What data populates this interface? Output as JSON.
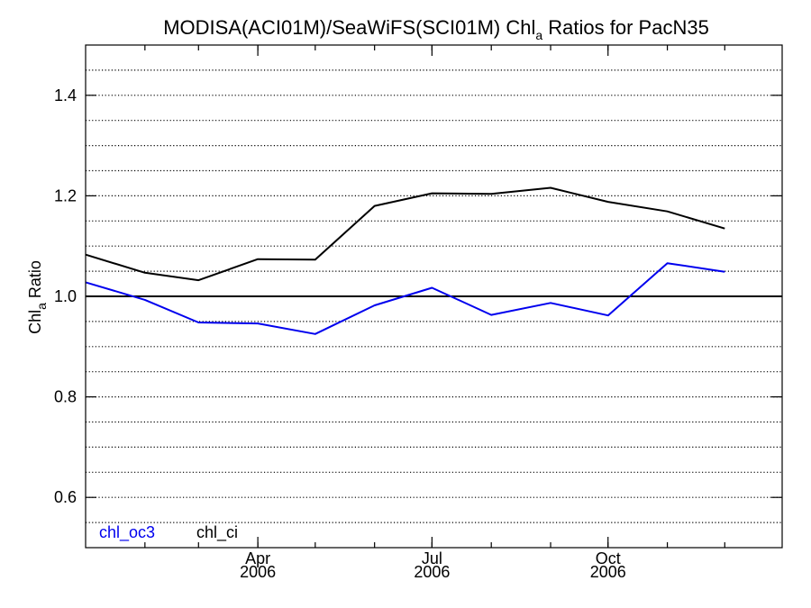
{
  "chart_data": {
    "type": "line",
    "title": {
      "main": "MODISA(ACI01M)/SeaWiFS(SCI01M)  Chl",
      "subscript": "a",
      "rest": " Ratios for PacN35"
    },
    "ylabel": {
      "main": "Chl",
      "subscript": "a",
      "rest": " Ratio"
    },
    "xlabel": "",
    "ylim": [
      0.5,
      1.5
    ],
    "xlim": [
      "2006-01-01",
      "2006-12-31"
    ],
    "yticks": [
      {
        "value": 0.6,
        "label": "0.6"
      },
      {
        "value": 0.8,
        "label": "0.8"
      },
      {
        "value": 1.0,
        "label": "1.0"
      },
      {
        "value": 1.2,
        "label": "1.2"
      },
      {
        "value": 1.4,
        "label": "1.4"
      }
    ],
    "xticks": [
      {
        "date": "2006-04-01",
        "label": "Apr",
        "year": "2006"
      },
      {
        "date": "2006-07-01",
        "label": "Jul",
        "year": "2006"
      },
      {
        "date": "2006-10-01",
        "label": "Oct",
        "year": "2006"
      }
    ],
    "reference_line": 1.0,
    "grid": true,
    "legend_position": "bottom-left",
    "series": [
      {
        "name": "chl_oc3",
        "color": "#0000ee",
        "points": [
          {
            "x": "2006-01-01",
            "y": 1.028
          },
          {
            "x": "2006-02-01",
            "y": 0.993
          },
          {
            "x": "2006-03-01",
            "y": 0.948
          },
          {
            "x": "2006-04-01",
            "y": 0.946
          },
          {
            "x": "2006-05-01",
            "y": 0.925
          },
          {
            "x": "2006-06-01",
            "y": 0.982
          },
          {
            "x": "2006-07-01",
            "y": 1.017
          },
          {
            "x": "2006-08-01",
            "y": 0.963
          },
          {
            "x": "2006-09-01",
            "y": 0.987
          },
          {
            "x": "2006-10-01",
            "y": 0.962
          },
          {
            "x": "2006-11-01",
            "y": 1.066
          },
          {
            "x": "2006-12-01",
            "y": 1.049
          }
        ]
      },
      {
        "name": "chl_ci",
        "color": "#000000",
        "points": [
          {
            "x": "2006-01-01",
            "y": 1.083
          },
          {
            "x": "2006-02-01",
            "y": 1.047
          },
          {
            "x": "2006-03-01",
            "y": 1.032
          },
          {
            "x": "2006-04-01",
            "y": 1.074
          },
          {
            "x": "2006-05-01",
            "y": 1.073
          },
          {
            "x": "2006-06-01",
            "y": 1.18
          },
          {
            "x": "2006-07-01",
            "y": 1.205
          },
          {
            "x": "2006-08-01",
            "y": 1.204
          },
          {
            "x": "2006-09-01",
            "y": 1.216
          },
          {
            "x": "2006-10-01",
            "y": 1.188
          },
          {
            "x": "2006-11-01",
            "y": 1.169
          },
          {
            "x": "2006-12-01",
            "y": 1.135
          }
        ]
      }
    ]
  }
}
